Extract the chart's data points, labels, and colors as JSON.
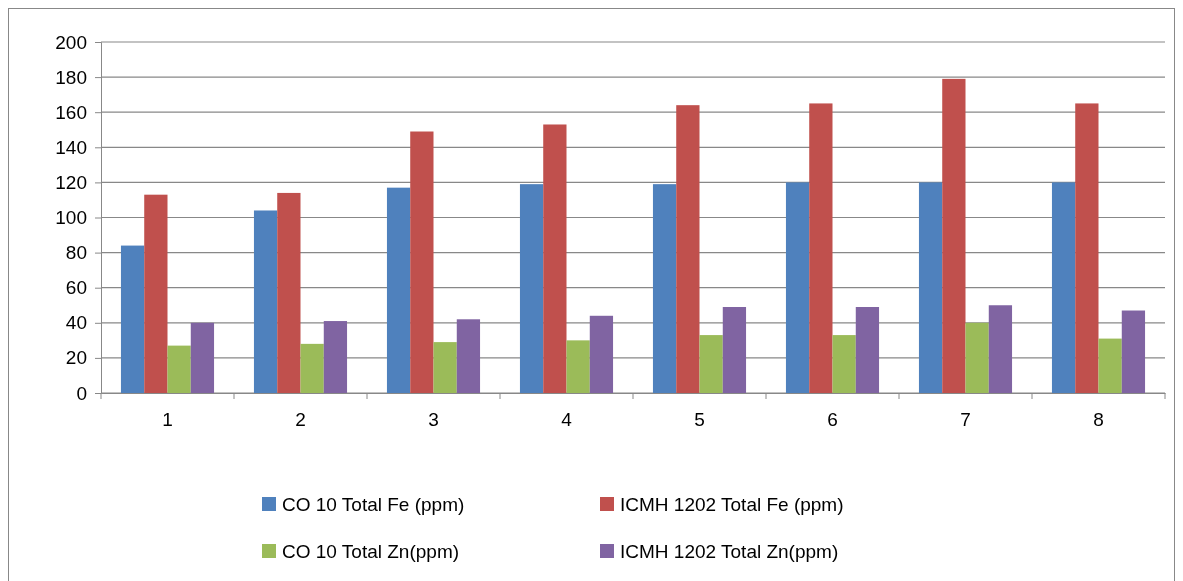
{
  "chart_data": {
    "type": "bar",
    "categories": [
      "1",
      "2",
      "3",
      "4",
      "5",
      "6",
      "7",
      "8"
    ],
    "series": [
      {
        "name": "CO 10 Total Fe (ppm)",
        "color": "#4f81bd",
        "values": [
          84,
          104,
          117,
          119,
          119,
          120,
          120,
          120
        ]
      },
      {
        "name": "ICMH 1202 Total Fe (ppm)",
        "color": "#c0504d",
        "values": [
          113,
          114,
          149,
          153,
          164,
          165,
          179,
          165
        ]
      },
      {
        "name": "CO 10 Total Zn(ppm)",
        "color": "#9bbb59",
        "values": [
          27,
          28,
          29,
          30,
          33,
          33,
          40,
          31
        ]
      },
      {
        "name": "ICMH 1202 Total Zn(ppm)",
        "color": "#8064a2",
        "values": [
          40,
          41,
          42,
          44,
          49,
          49,
          50,
          47
        ]
      }
    ],
    "ylim": [
      0,
      200
    ],
    "yticks": [
      0,
      20,
      40,
      60,
      80,
      100,
      120,
      140,
      160,
      180,
      200
    ],
    "grid": "y",
    "legend": "bottom"
  }
}
